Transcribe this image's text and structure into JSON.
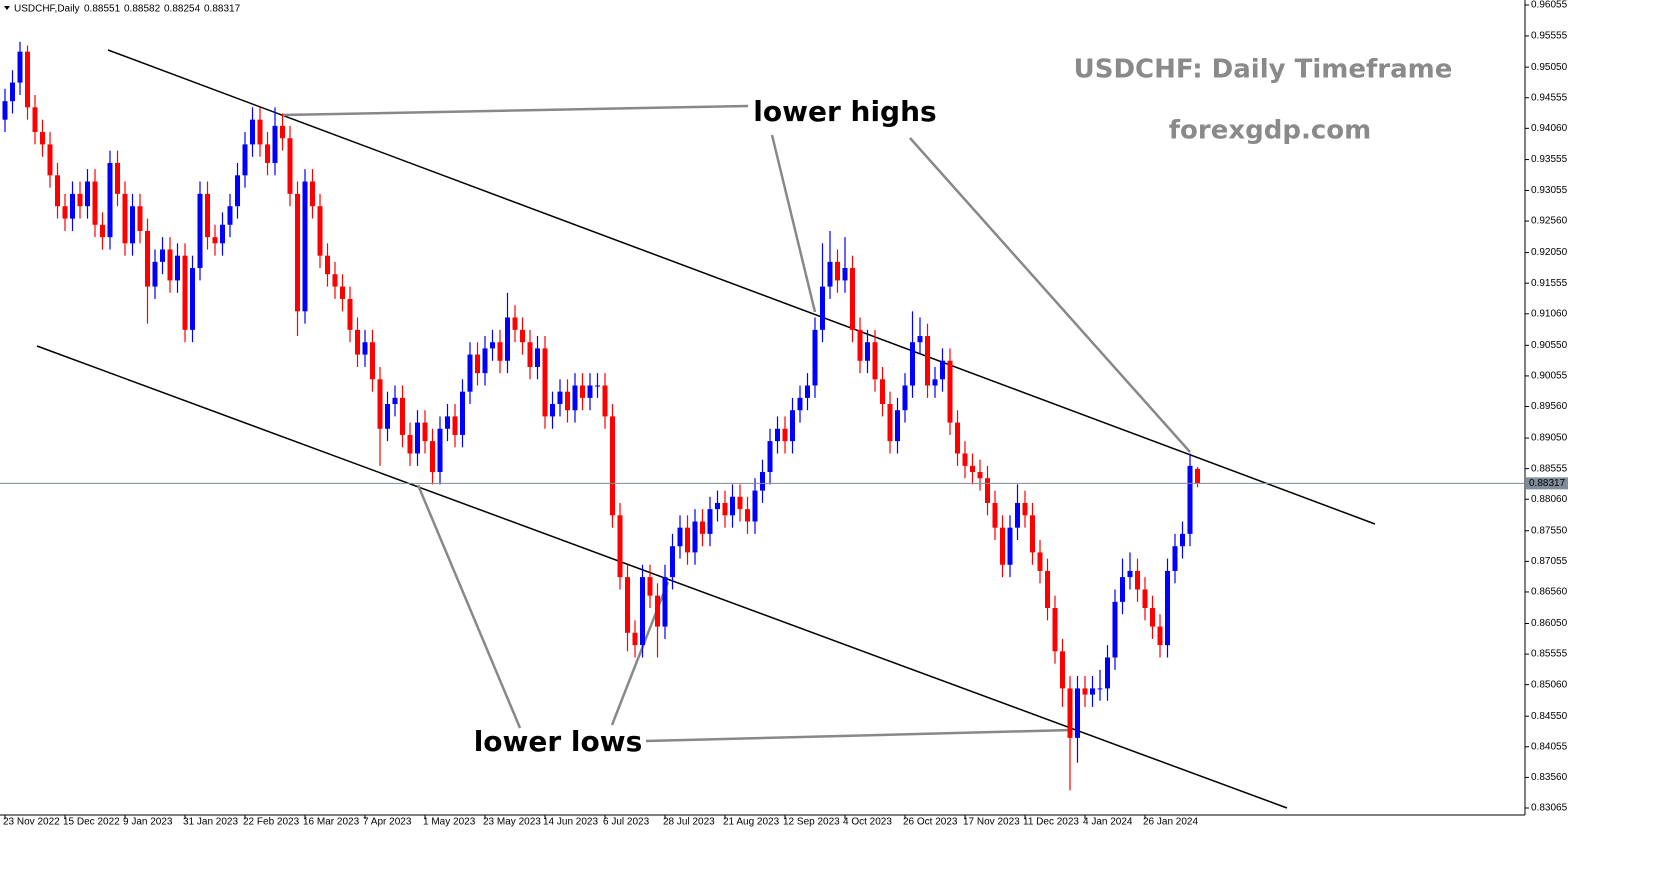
{
  "chart_data": {
    "type": "candlestick",
    "symbol_label": "USDCHF,Daily",
    "title": "USDCHF: Daily Timeframe",
    "subtitle": "forexgdp.com",
    "annotations": [
      "lower highs",
      "lower lows"
    ],
    "up_color": "#0000ff",
    "down_color": "#ff0000",
    "price_line_color": "#7f8c99",
    "categories": [
      "23 Nov 2022",
      null,
      null,
      null,
      null,
      null,
      null,
      null,
      "15 Dec 2022",
      null,
      null,
      null,
      null,
      null,
      null,
      null,
      "9 Jan 2023",
      null,
      null,
      null,
      null,
      null,
      null,
      null,
      "31 Jan 2023",
      null,
      null,
      null,
      null,
      null,
      null,
      null,
      "22 Feb 2023",
      null,
      null,
      null,
      null,
      null,
      null,
      null,
      "16 Mar 2023",
      null,
      null,
      null,
      null,
      null,
      null,
      null,
      "7 Apr 2023",
      null,
      null,
      null,
      null,
      null,
      null,
      null,
      "1 May 2023",
      null,
      null,
      null,
      null,
      null,
      null,
      null,
      "23 May 2023",
      null,
      null,
      null,
      null,
      null,
      null,
      null,
      "14 Jun 2023",
      null,
      null,
      null,
      null,
      null,
      null,
      null,
      "6 Jul 2023",
      null,
      null,
      null,
      null,
      null,
      null,
      null,
      "28 Jul 2023",
      null,
      null,
      null,
      null,
      null,
      null,
      null,
      "21 Aug 2023",
      null,
      null,
      null,
      null,
      null,
      null,
      null,
      "12 Sep 2023",
      null,
      null,
      null,
      null,
      null,
      null,
      null,
      "4 Oct 2023",
      null,
      null,
      null,
      null,
      null,
      null,
      null,
      "26 Oct 2023",
      null,
      null,
      null,
      null,
      null,
      null,
      null,
      "17 Nov 2023",
      null,
      null,
      null,
      null,
      null,
      null,
      null,
      "11 Dec 2023",
      null,
      null,
      null,
      null,
      null,
      null,
      null,
      "4 Jan 2024",
      null,
      null,
      null,
      null,
      null,
      null,
      null,
      "26 Jan 2024",
      null,
      null,
      null,
      null,
      null,
      null,
      null
    ],
    "open": [
      0.942,
      0.945,
      0.948,
      0.953,
      0.944,
      0.94,
      0.938,
      0.933,
      0.928,
      0.926,
      0.93,
      0.928,
      0.932,
      0.925,
      0.923,
      0.935,
      0.93,
      0.922,
      0.928,
      0.924,
      0.915,
      0.919,
      0.921,
      0.916,
      0.92,
      0.908,
      0.918,
      0.93,
      0.923,
      0.922,
      0.925,
      0.928,
      0.933,
      0.938,
      0.942,
      0.938,
      0.935,
      0.941,
      0.939,
      0.93,
      0.911,
      0.932,
      0.928,
      0.92,
      0.917,
      0.915,
      0.913,
      0.908,
      0.904,
      0.906,
      0.9,
      0.892,
      0.896,
      0.897,
      0.891,
      0.888,
      0.893,
      0.89,
      0.885,
      0.892,
      0.894,
      0.891,
      0.898,
      0.904,
      0.901,
      0.905,
      0.906,
      0.903,
      0.91,
      0.908,
      0.906,
      0.902,
      0.905,
      0.894,
      0.896,
      0.898,
      0.895,
      0.899,
      0.897,
      0.899,
      0.899,
      0.894,
      0.878,
      0.868,
      0.859,
      0.857,
      0.868,
      0.865,
      0.86,
      0.868,
      0.873,
      0.876,
      0.872,
      0.877,
      0.875,
      0.879,
      0.88,
      0.878,
      0.881,
      0.879,
      0.877,
      0.882,
      0.885,
      0.89,
      0.892,
      0.89,
      0.895,
      0.897,
      0.899,
      0.908,
      0.915,
      0.919,
      0.916,
      0.918,
      0.908,
      0.903,
      0.906,
      0.9,
      0.896,
      0.89,
      0.895,
      0.899,
      0.906,
      0.907,
      0.899,
      0.9,
      0.903,
      0.893,
      0.888,
      0.886,
      0.885,
      0.884,
      0.88,
      0.876,
      0.87,
      0.876,
      0.88,
      0.878,
      0.872,
      0.869,
      0.863,
      0.856,
      0.85,
      0.842,
      0.85,
      0.849,
      0.85,
      0.85,
      0.855,
      0.864,
      0.868,
      0.869,
      0.866,
      0.863,
      0.86,
      0.857,
      0.869,
      0.873,
      0.875,
      0.88551
    ],
    "high": [
      0.947,
      0.95,
      0.9546,
      0.954,
      0.946,
      0.942,
      0.94,
      0.935,
      0.93,
      0.932,
      0.932,
      0.934,
      0.934,
      0.927,
      0.937,
      0.937,
      0.932,
      0.93,
      0.93,
      0.926,
      0.921,
      0.923,
      0.923,
      0.922,
      0.922,
      0.92,
      0.932,
      0.932,
      0.925,
      0.927,
      0.93,
      0.935,
      0.94,
      0.944,
      0.944,
      0.94,
      0.944,
      0.943,
      0.941,
      0.932,
      0.934,
      0.934,
      0.93,
      0.922,
      0.919,
      0.917,
      0.915,
      0.91,
      0.908,
      0.908,
      0.902,
      0.898,
      0.899,
      0.899,
      0.893,
      0.895,
      0.895,
      0.892,
      0.894,
      0.896,
      0.896,
      0.9,
      0.906,
      0.906,
      0.907,
      0.908,
      0.908,
      0.914,
      0.912,
      0.91,
      0.908,
      0.907,
      0.907,
      0.898,
      0.9,
      0.9,
      0.901,
      0.901,
      0.901,
      0.901,
      0.901,
      0.896,
      0.88,
      0.87,
      0.861,
      0.87,
      0.87,
      0.867,
      0.87,
      0.875,
      0.878,
      0.878,
      0.879,
      0.879,
      0.881,
      0.882,
      0.882,
      0.883,
      0.883,
      0.881,
      0.884,
      0.887,
      0.892,
      0.894,
      0.894,
      0.897,
      0.899,
      0.901,
      0.91,
      0.922,
      0.924,
      0.921,
      0.923,
      0.92,
      0.91,
      0.908,
      0.908,
      0.902,
      0.898,
      0.897,
      0.901,
      0.911,
      0.91,
      0.909,
      0.902,
      0.905,
      0.905,
      0.895,
      0.89,
      0.888,
      0.887,
      0.886,
      0.882,
      0.878,
      0.878,
      0.883,
      0.882,
      0.88,
      0.874,
      0.871,
      0.865,
      0.858,
      0.852,
      0.852,
      0.852,
      0.852,
      0.853,
      0.857,
      0.866,
      0.871,
      0.872,
      0.871,
      0.868,
      0.865,
      0.862,
      0.871,
      0.875,
      0.877,
      0.888,
      0.88582
    ],
    "low": [
      0.94,
      0.943,
      0.946,
      0.942,
      0.938,
      0.936,
      0.931,
      0.926,
      0.924,
      0.924,
      0.926,
      0.926,
      0.923,
      0.921,
      0.921,
      0.928,
      0.92,
      0.92,
      0.922,
      0.909,
      0.913,
      0.917,
      0.914,
      0.914,
      0.906,
      0.906,
      0.916,
      0.921,
      0.92,
      0.92,
      0.923,
      0.926,
      0.931,
      0.936,
      0.936,
      0.933,
      0.933,
      0.937,
      0.928,
      0.907,
      0.909,
      0.926,
      0.918,
      0.915,
      0.913,
      0.911,
      0.906,
      0.902,
      0.902,
      0.898,
      0.886,
      0.89,
      0.894,
      0.889,
      0.886,
      0.886,
      0.888,
      0.883,
      0.883,
      0.89,
      0.889,
      0.889,
      0.896,
      0.899,
      0.899,
      0.903,
      0.901,
      0.901,
      0.906,
      0.904,
      0.9,
      0.9,
      0.892,
      0.892,
      0.894,
      0.893,
      0.893,
      0.895,
      0.895,
      0.897,
      0.892,
      0.876,
      0.866,
      0.856,
      0.855,
      0.855,
      0.863,
      0.855,
      0.858,
      0.866,
      0.871,
      0.87,
      0.87,
      0.873,
      0.873,
      0.877,
      0.876,
      0.876,
      0.877,
      0.875,
      0.875,
      0.88,
      0.883,
      0.888,
      0.888,
      0.888,
      0.893,
      0.895,
      0.897,
      0.906,
      0.913,
      0.914,
      0.914,
      0.906,
      0.901,
      0.901,
      0.898,
      0.894,
      0.888,
      0.888,
      0.893,
      0.897,
      0.904,
      0.897,
      0.897,
      0.898,
      0.891,
      0.886,
      0.884,
      0.883,
      0.882,
      0.878,
      0.874,
      0.868,
      0.868,
      0.874,
      0.876,
      0.87,
      0.867,
      0.861,
      0.854,
      0.847,
      0.8335,
      0.838,
      0.847,
      0.847,
      0.848,
      0.848,
      0.853,
      0.862,
      0.866,
      0.864,
      0.861,
      0.858,
      0.855,
      0.855,
      0.867,
      0.871,
      0.873,
      0.88254
    ],
    "close": [
      0.945,
      0.948,
      0.953,
      0.944,
      0.94,
      0.938,
      0.933,
      0.928,
      0.926,
      0.93,
      0.928,
      0.932,
      0.925,
      0.923,
      0.935,
      0.93,
      0.922,
      0.928,
      0.924,
      0.915,
      0.919,
      0.921,
      0.916,
      0.92,
      0.908,
      0.918,
      0.93,
      0.923,
      0.922,
      0.925,
      0.928,
      0.933,
      0.938,
      0.942,
      0.938,
      0.935,
      0.941,
      0.939,
      0.93,
      0.911,
      0.932,
      0.928,
      0.92,
      0.917,
      0.915,
      0.913,
      0.908,
      0.904,
      0.906,
      0.9,
      0.892,
      0.896,
      0.897,
      0.891,
      0.888,
      0.893,
      0.89,
      0.885,
      0.892,
      0.894,
      0.891,
      0.898,
      0.904,
      0.901,
      0.905,
      0.906,
      0.903,
      0.91,
      0.908,
      0.906,
      0.902,
      0.905,
      0.894,
      0.896,
      0.898,
      0.895,
      0.899,
      0.897,
      0.899,
      0.899,
      0.894,
      0.878,
      0.868,
      0.859,
      0.857,
      0.868,
      0.865,
      0.86,
      0.868,
      0.873,
      0.876,
      0.872,
      0.877,
      0.875,
      0.879,
      0.88,
      0.878,
      0.881,
      0.879,
      0.877,
      0.882,
      0.885,
      0.89,
      0.892,
      0.89,
      0.895,
      0.897,
      0.899,
      0.908,
      0.915,
      0.919,
      0.916,
      0.918,
      0.908,
      0.903,
      0.906,
      0.9,
      0.896,
      0.89,
      0.895,
      0.899,
      0.906,
      0.907,
      0.899,
      0.9,
      0.903,
      0.893,
      0.888,
      0.886,
      0.885,
      0.884,
      0.88,
      0.876,
      0.87,
      0.876,
      0.88,
      0.878,
      0.872,
      0.869,
      0.863,
      0.856,
      0.85,
      0.842,
      0.85,
      0.849,
      0.85,
      0.85,
      0.855,
      0.864,
      0.868,
      0.869,
      0.866,
      0.863,
      0.86,
      0.857,
      0.869,
      0.873,
      0.875,
      0.886,
      0.88317
    ],
    "ylim": [
      0.82952,
      0.96136
    ],
    "yticks": [
      0.96055,
      0.95555,
      {
        "value": 0.9505,
        "label": "0.95050"
      },
      0.94555,
      {
        "value": 0.9406,
        "label": "0.94060"
      },
      0.93555,
      0.93055,
      {
        "value": 0.9256,
        "label": "0.92560"
      },
      {
        "value": 0.9205,
        "label": "0.92050"
      },
      0.91555,
      {
        "value": 0.9106,
        "label": "0.91060"
      },
      {
        "value": 0.9055,
        "label": "0.90550"
      },
      0.90055,
      {
        "value": 0.8956,
        "label": "0.89560"
      },
      {
        "value": 0.8905,
        "label": "0.89050"
      },
      0.88555,
      {
        "value": 0.8806,
        "label": "0.88060"
      },
      {
        "value": 0.8755,
        "label": "0.87550"
      },
      0.87055,
      {
        "value": 0.8656,
        "label": "0.86560"
      },
      {
        "value": 0.8605,
        "label": "0.86050"
      },
      0.85555,
      {
        "value": 0.8506,
        "label": "0.85060"
      },
      {
        "value": 0.8455,
        "label": "0.84550"
      },
      0.84055,
      {
        "value": 0.8356,
        "label": "0.83560"
      },
      0.83065
    ]
  }
}
